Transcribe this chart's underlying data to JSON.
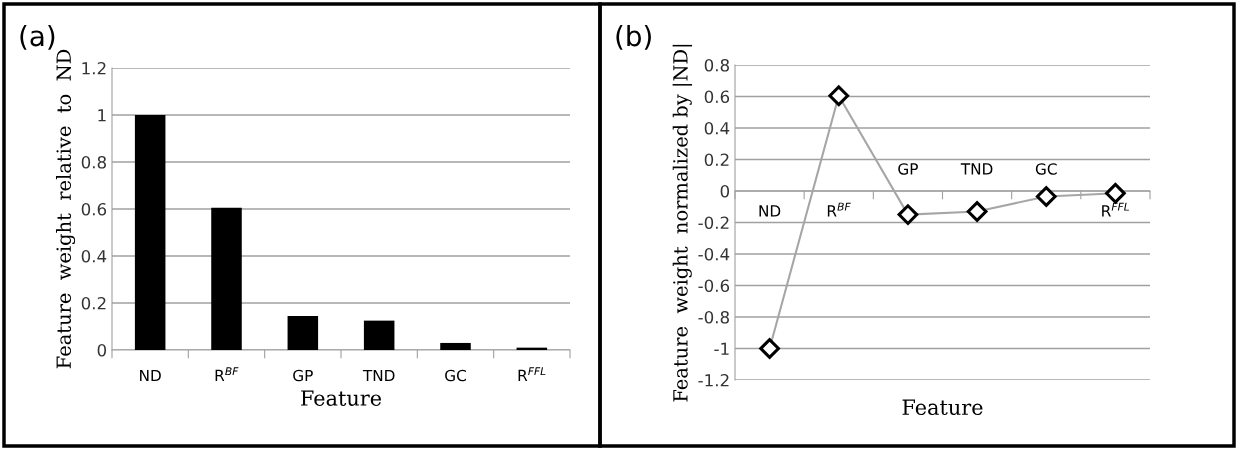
{
  "chart_data": [
    {
      "type": "bar",
      "title": "(a)",
      "xlabel": "Feature",
      "ylabel": "Feature  weight  relative  to  ND",
      "categories": [
        "ND",
        "R$^{BF}$",
        "GP",
        "TND",
        "GC",
        "R$^{FFL}$"
      ],
      "values": [
        1,
        0.605,
        0.145,
        0.125,
        0.03,
        0.01
      ],
      "color": "#000000",
      "ylim": [
        0,
        1.2
      ],
      "yticks": [
        0,
        0.2,
        0.4,
        0.6,
        0.8,
        1,
        1.2
      ],
      "grid": "y"
    },
    {
      "type": "line",
      "title": "(b)",
      "xlabel": "Feature",
      "ylabel": "Feature  weight  normalized by |ND|",
      "categories": [
        "ND",
        "R$^{BF}$",
        "GP",
        "TND",
        "GC",
        "R$^{FFL}$"
      ],
      "series": [
        {
          "color": "#a6a6a6",
          "values": [
            -1,
            0.605,
            -0.15,
            -0.13,
            -0.035,
            -0.015
          ]
        }
      ],
      "marker": "diamond",
      "ylim": [
        -1.2,
        0.8
      ],
      "yticks": [
        -1.2,
        -1,
        -0.8,
        -0.6,
        -0.4,
        -0.2,
        0,
        0.2,
        0.4,
        0.6,
        0.8
      ],
      "grid": "y"
    }
  ]
}
